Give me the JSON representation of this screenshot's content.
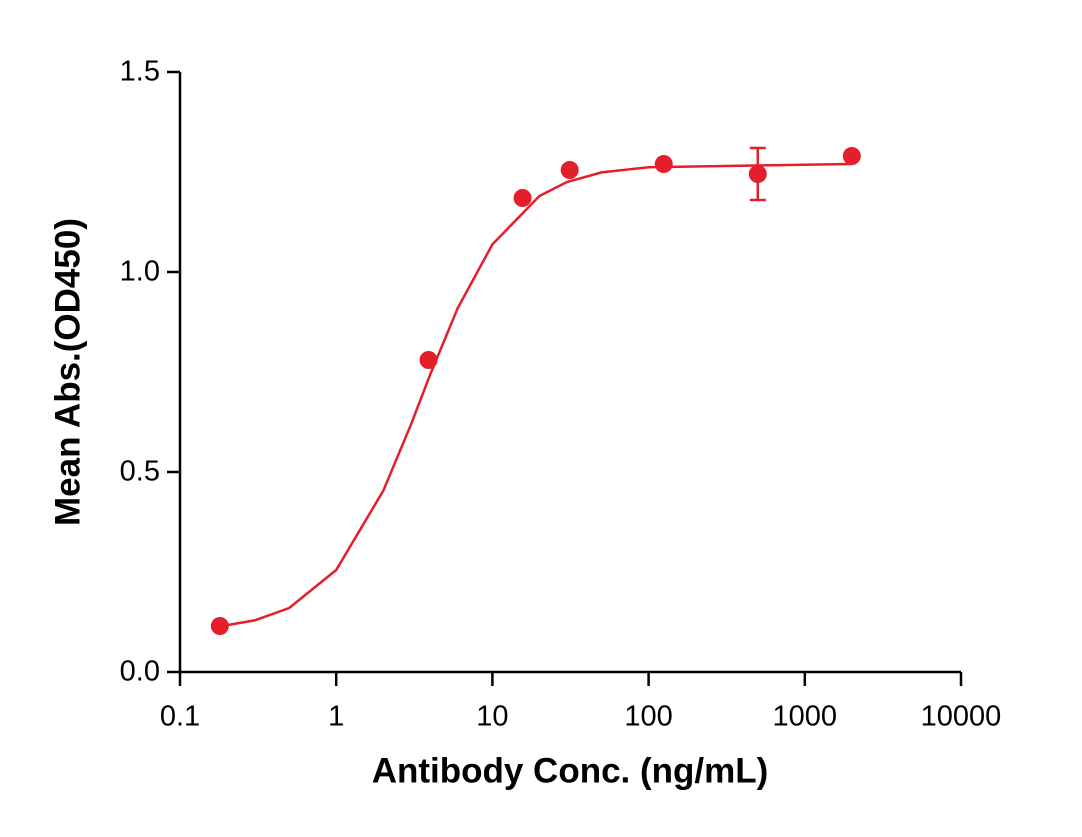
{
  "chart_data": {
    "type": "scatter",
    "xlabel": "Antibody Conc. (ng/mL)",
    "ylabel": "Mean Abs.(OD450)",
    "xlog": true,
    "color": "#e41e2b",
    "x": [
      0.18,
      3.9,
      15.6,
      31.25,
      125,
      500,
      2000
    ],
    "values": [
      0.115,
      0.78,
      1.185,
      1.255,
      1.27,
      1.245,
      1.29
    ],
    "errors": [
      null,
      null,
      null,
      null,
      null,
      0.065,
      null
    ],
    "fit": {
      "x": [
        0.18,
        0.3,
        0.5,
        1,
        2,
        3,
        4,
        6,
        10,
        20,
        30,
        50,
        100,
        2000
      ],
      "values": [
        0.114,
        0.129,
        0.16,
        0.255,
        0.453,
        0.617,
        0.744,
        0.91,
        1.069,
        1.19,
        1.225,
        1.249,
        1.262,
        1.27
      ]
    },
    "xlim": [
      0.1,
      10000
    ],
    "xticks": [
      0.1,
      1,
      10,
      100,
      1000,
      10000
    ],
    "ylim": [
      0,
      1.5
    ],
    "yticks": [
      {
        "value": 0,
        "label": "0.0"
      },
      0.5,
      {
        "value": 1,
        "label": "1.0"
      },
      1.5
    ]
  }
}
